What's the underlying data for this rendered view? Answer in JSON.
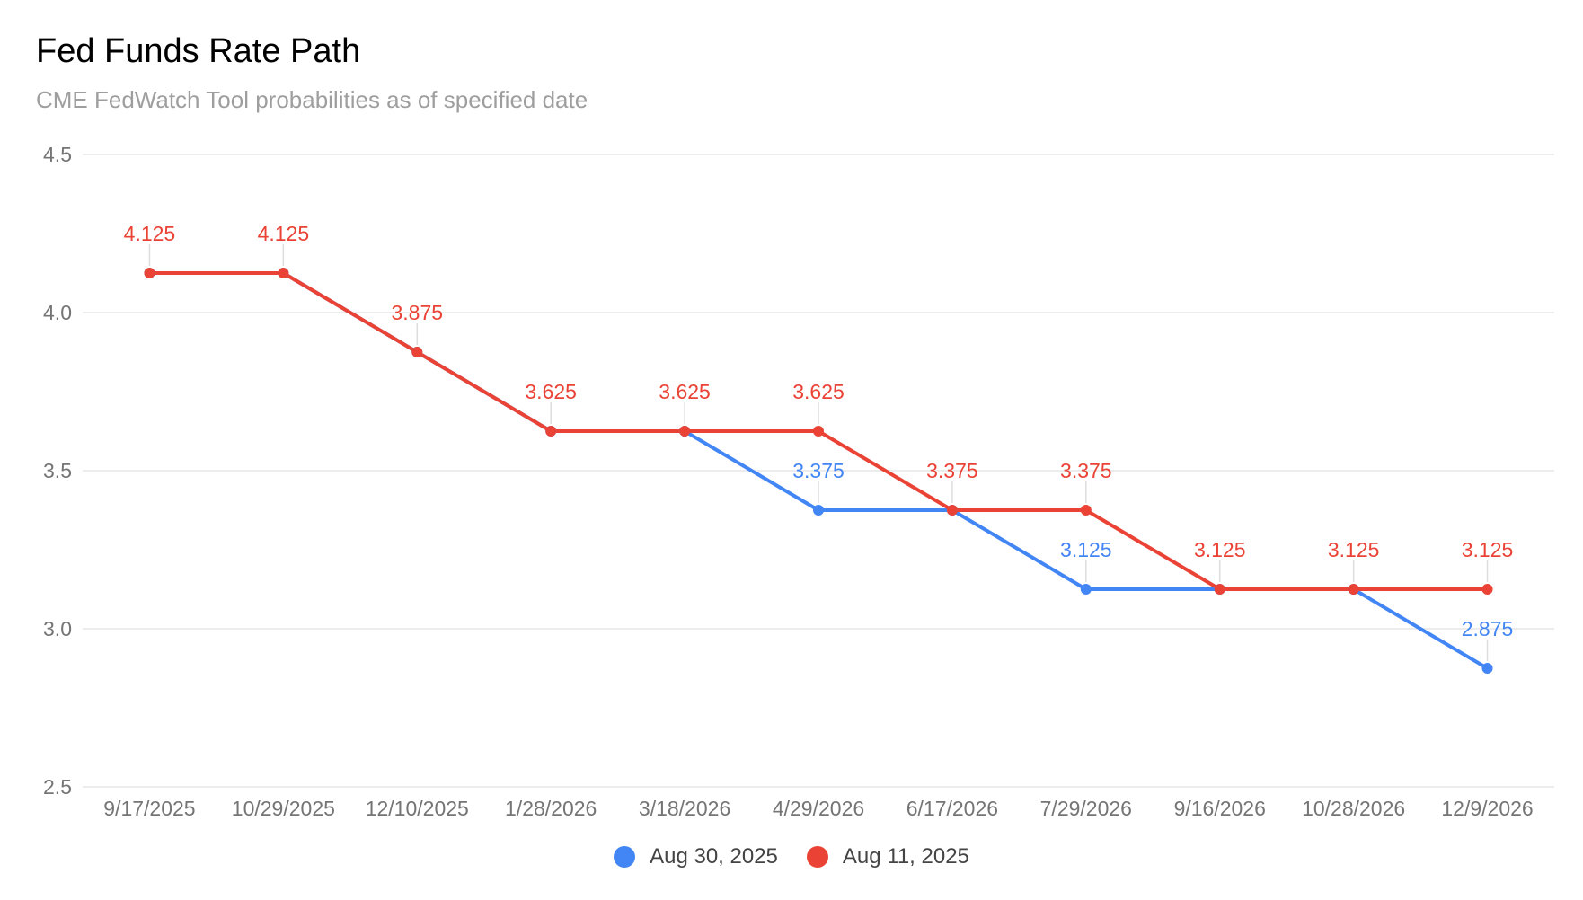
{
  "chart_data": {
    "type": "line",
    "title": "Fed Funds Rate Path",
    "subtitle": "CME FedWatch Tool probabilities as of specified date",
    "categories": [
      "9/17/2025",
      "10/29/2025",
      "12/10/2025",
      "1/28/2026",
      "3/18/2026",
      "4/29/2026",
      "6/17/2026",
      "7/29/2026",
      "9/16/2026",
      "10/28/2026",
      "12/9/2026"
    ],
    "ylim": [
      2.5,
      4.5
    ],
    "yticks": [
      "4.5",
      "4.0",
      "3.5",
      "3.0",
      "2.5"
    ],
    "grid": true,
    "legend_position": "bottom",
    "series": [
      {
        "name": "Aug 11, 2025",
        "color": "#ea4335",
        "values": [
          4.125,
          4.125,
          3.875,
          3.625,
          3.625,
          3.625,
          3.375,
          3.375,
          3.125,
          3.125,
          3.125
        ],
        "labels": [
          "4.125",
          "4.125",
          "3.875",
          "3.625",
          "3.625",
          "3.625",
          "3.375",
          "3.375",
          "3.125",
          "3.125",
          "3.125"
        ]
      },
      {
        "name": "Aug 30, 2025",
        "color": "#4285f4",
        "values": [
          4.125,
          4.125,
          3.875,
          3.625,
          3.625,
          3.375,
          3.375,
          3.125,
          3.125,
          3.125,
          2.875
        ],
        "labels": [
          "",
          "",
          "",
          "",
          "",
          "3.375",
          "",
          "3.125",
          "",
          "",
          "2.875"
        ]
      }
    ],
    "legend": [
      {
        "name": "Aug 30, 2025",
        "color": "#4285f4"
      },
      {
        "name": "Aug 11, 2025",
        "color": "#ea4335"
      }
    ]
  }
}
